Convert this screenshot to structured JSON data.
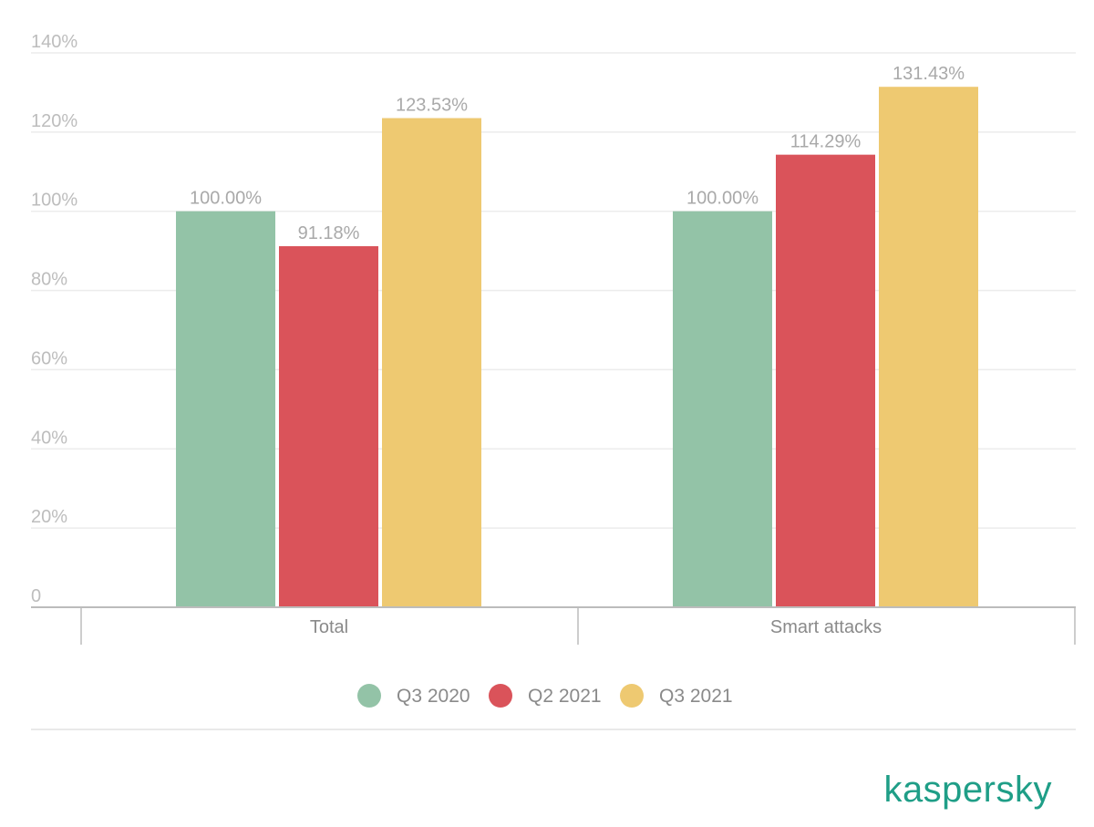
{
  "chart_data": {
    "type": "bar",
    "categories": [
      "Total",
      "Smart attacks"
    ],
    "series": [
      {
        "name": "Q3 2020",
        "values": [
          100.0,
          100.0
        ],
        "labels": [
          "100.00%",
          "100.00%"
        ],
        "color": "#93c3a7"
      },
      {
        "name": "Q2 2021",
        "values": [
          91.18,
          114.29
        ],
        "labels": [
          "91.18%",
          "114.29%"
        ],
        "color": "#da535a"
      },
      {
        "name": "Q3 2021",
        "values": [
          123.53,
          131.43
        ],
        "labels": [
          "123.53%",
          "131.43%"
        ],
        "color": "#eec971"
      }
    ],
    "yticks": [
      "0",
      "20%",
      "40%",
      "60%",
      "80%",
      "100%",
      "120%",
      "140%"
    ],
    "ylim": [
      0,
      140
    ],
    "grid": true,
    "legend_position": "bottom",
    "title": "",
    "xlabel": "",
    "ylabel": ""
  },
  "brand": "kaspersky"
}
